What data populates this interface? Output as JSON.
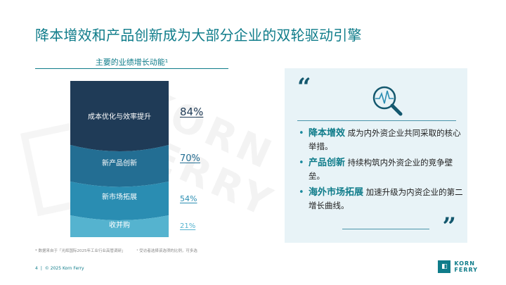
{
  "slide": {
    "title": "降本增效和产品创新成为大部分企业的双轮驱动引擎",
    "chart_heading": "主要的业绩增长动能¹",
    "footnote_1": "* 数据来自于「光辉国际2025年工业行业高管调研」",
    "footnote_2": "¹ 受访者选择该选项的比例，可多选",
    "page_number": "4",
    "separator": "|",
    "copyright": "© 2025 Korn Ferry",
    "brand_line_1": "KORN",
    "brand_line_2": "FERRY",
    "watermark_line_1": "KORN",
    "watermark_line_2": "FERRY"
  },
  "chart_data": {
    "type": "bar",
    "categories": [
      "成本优化与效率提升",
      "新产品创新",
      "新市场拓展",
      "收并购"
    ],
    "values": [
      84,
      70,
      54,
      21
    ],
    "value_labels": [
      "84%",
      "70%",
      "54%",
      "21%"
    ],
    "colors": [
      "#1f3b57",
      "#236e93",
      "#2a8db2",
      "#55b3cf"
    ]
  },
  "panel": {
    "quote_open": "“",
    "quote_close": "”",
    "icon": "magnifier-pulse-icon",
    "bullets": [
      {
        "keyword": "降本增效",
        "text": " 成为内外资企业共同采取的核心举措。"
      },
      {
        "keyword": "产品创新",
        "text": " 持续构筑内外资企业的竞争壁垒。"
      },
      {
        "keyword": "海外市场拓展",
        "text": " 加速升级为内资企业的第二增长曲线。"
      }
    ],
    "bullet_char": "•"
  }
}
